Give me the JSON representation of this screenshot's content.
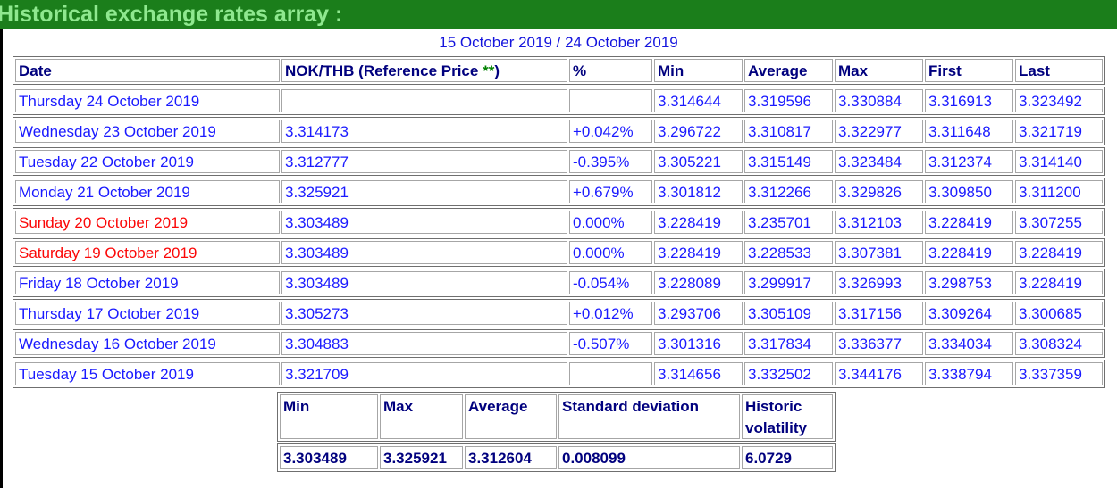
{
  "header": {
    "title": "Historical exchange rates array :"
  },
  "subtitle": "15 October 2019 / 24 October 2019",
  "table": {
    "columns": {
      "date": "Date",
      "rate_pre": "NOK/THB (Reference Price ",
      "rate_stars": "**",
      "rate_post": ")",
      "pct": "%",
      "min": "Min",
      "avg": "Average",
      "max": "Max",
      "first": "First",
      "last": "Last"
    },
    "rows": [
      {
        "date": "Thursday 24 October 2019",
        "rate": "",
        "pct": "",
        "min": "3.314644",
        "avg": "3.319596",
        "max": "3.330884",
        "first": "3.316913",
        "last": "3.323492"
      },
      {
        "date": "Wednesday 23 October 2019",
        "rate": "3.314173",
        "pct": "+0.042%",
        "min": "3.296722",
        "avg": "3.310817",
        "max": "3.322977",
        "first": "3.311648",
        "last": "3.321719"
      },
      {
        "date": "Tuesday 22 October 2019",
        "rate": "3.312777",
        "pct": "-0.395%",
        "min": "3.305221",
        "avg": "3.315149",
        "max": "3.323484",
        "first": "3.312374",
        "last": "3.314140"
      },
      {
        "date": "Monday 21 October 2019",
        "rate": "3.325921",
        "pct": "+0.679%",
        "min": "3.301812",
        "avg": "3.312266",
        "max": "3.329826",
        "first": "3.309850",
        "last": "3.311200"
      },
      {
        "date": "Sunday 20 October 2019",
        "rate": "3.303489",
        "pct": "0.000%",
        "min": "3.228419",
        "avg": "3.235701",
        "max": "3.312103",
        "first": "3.228419",
        "last": "3.307255"
      },
      {
        "date": "Saturday 19 October 2019",
        "rate": "3.303489",
        "pct": "0.000%",
        "min": "3.228419",
        "avg": "3.228533",
        "max": "3.307381",
        "first": "3.228419",
        "last": "3.228419"
      },
      {
        "date": "Friday 18 October 2019",
        "rate": "3.303489",
        "pct": "-0.054%",
        "min": "3.228089",
        "avg": "3.299917",
        "max": "3.326993",
        "first": "3.298753",
        "last": "3.228419"
      },
      {
        "date": "Thursday 17 October 2019",
        "rate": "3.305273",
        "pct": "+0.012%",
        "min": "3.293706",
        "avg": "3.305109",
        "max": "3.317156",
        "first": "3.309264",
        "last": "3.300685"
      },
      {
        "date": "Wednesday 16 October 2019",
        "rate": "3.304883",
        "pct": "-0.507%",
        "min": "3.301316",
        "avg": "3.317834",
        "max": "3.336377",
        "first": "3.334034",
        "last": "3.308324"
      },
      {
        "date": "Tuesday 15 October 2019",
        "rate": "3.321709",
        "pct": "",
        "min": "3.314656",
        "avg": "3.332502",
        "max": "3.344176",
        "first": "3.338794",
        "last": "3.337359"
      }
    ]
  },
  "summary": {
    "columns": {
      "min": "Min",
      "max": "Max",
      "avg": "Average",
      "stdev": "Standard deviation",
      "volatility": "Historic volatility"
    },
    "values": {
      "min": "3.303489",
      "max": "3.325921",
      "avg": "3.312604",
      "stdev": "0.008099",
      "volatility": "6.0729"
    }
  },
  "colors": {
    "titlebar_bg": "#1b7e1b",
    "titlebar_fg": "#8fe88f",
    "header_navy": "#00007e",
    "data_blue": "#1a1aff",
    "weekend_red": "#fb0707",
    "stars_green": "#008000"
  }
}
